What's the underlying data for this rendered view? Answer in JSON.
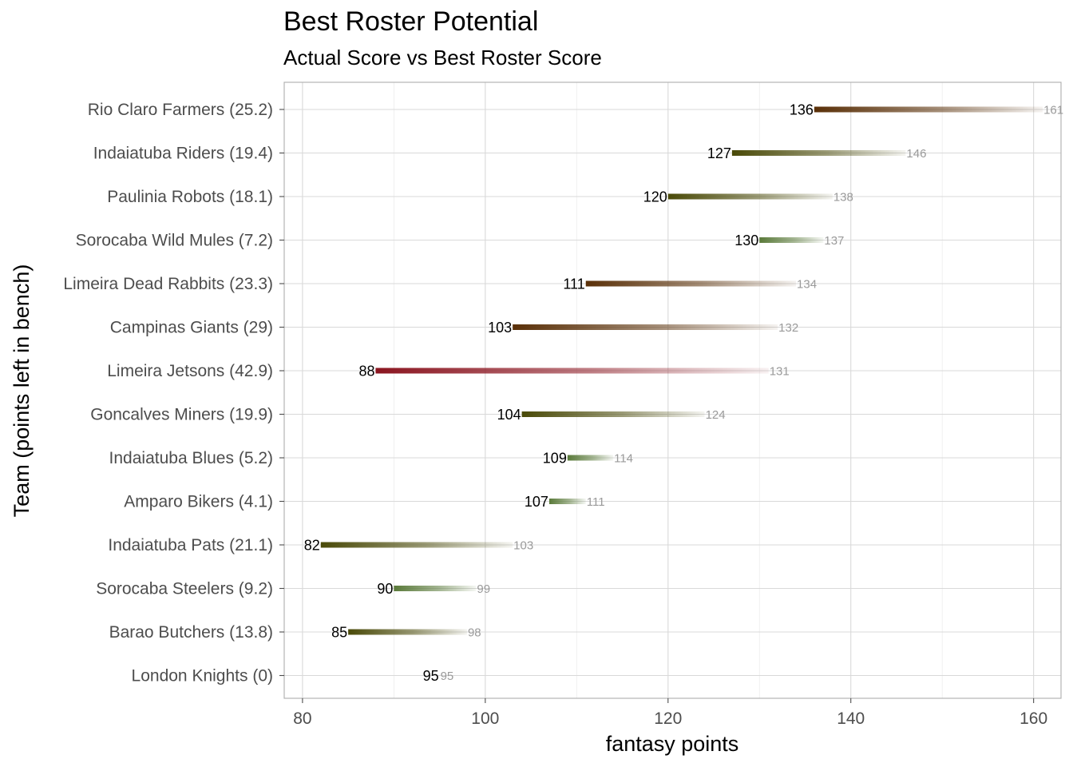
{
  "chart_data": {
    "type": "dumbbell",
    "title": "Best Roster Potential",
    "subtitle": "Actual Score vs Best Roster Score",
    "xlabel": "fantasy points",
    "ylabel": "Team (points left in bench)",
    "xlim": [
      78,
      163
    ],
    "xticks": [
      80,
      100,
      120,
      140,
      160
    ],
    "grid": true,
    "legend": "none",
    "colors": {
      "low_bench": "#5a7a3a",
      "mid_bench": "#4a4a08",
      "high_bench": "#5a3008",
      "very_high_bench": "#8b1520"
    },
    "categories": [
      "Rio Claro Farmers (25.2)",
      "Indaiatuba Riders (19.4)",
      "Paulinia Robots (18.1)",
      "Sorocaba Wild Mules (7.2)",
      "Limeira Dead Rabbits (23.3)",
      "Campinas Giants (29)",
      "Limeira Jetsons (42.9)",
      "Goncalves Miners (19.9)",
      "Indaiatuba Blues (5.2)",
      "Amparo Bikers (4.1)",
      "Indaiatuba Pats (21.1)",
      "Sorocaba Steelers (9.2)",
      "Barao Butchers (13.8)",
      "London Knights (0)"
    ],
    "series": [
      {
        "name": "Actual Score",
        "values": [
          136,
          127,
          120,
          130,
          111,
          103,
          88,
          104,
          109,
          107,
          82,
          90,
          85,
          95
        ]
      },
      {
        "name": "Best Roster Score",
        "values": [
          161,
          146,
          138,
          137,
          134,
          132,
          131,
          124,
          114,
          111,
          103,
          99,
          98,
          95
        ]
      }
    ],
    "bench": [
      25.2,
      19.4,
      18.1,
      7.2,
      23.3,
      29,
      42.9,
      19.9,
      5.2,
      4.1,
      21.1,
      9.2,
      13.8,
      0
    ]
  }
}
